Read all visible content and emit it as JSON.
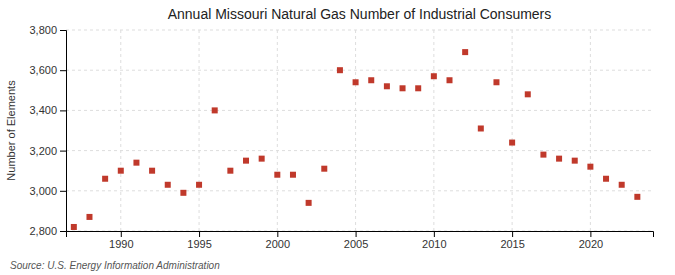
{
  "chart_data": {
    "type": "scatter",
    "title": "Annual Missouri Natural Gas Number of Industrial Consumers",
    "ylabel": "Number of Elements",
    "source": "Source: U.S. Energy Information Administration",
    "x": [
      1987,
      1988,
      1989,
      1990,
      1991,
      1992,
      1993,
      1994,
      1995,
      1996,
      1997,
      1998,
      1999,
      2000,
      2001,
      2002,
      2003,
      2004,
      2005,
      2006,
      2007,
      2008,
      2009,
      2010,
      2011,
      2012,
      2013,
      2014,
      2015,
      2016,
      2017,
      2018,
      2019,
      2020,
      2021,
      2022,
      2023
    ],
    "values": [
      2820,
      2870,
      3060,
      3100,
      3140,
      3100,
      3030,
      2990,
      3030,
      3400,
      3100,
      3150,
      3160,
      3080,
      3080,
      2940,
      3110,
      3600,
      3540,
      3550,
      3520,
      3510,
      3510,
      3570,
      3550,
      3690,
      3310,
      3540,
      3240,
      3480,
      3180,
      3160,
      3150,
      3120,
      3060,
      3030,
      2970
    ],
    "color": "#c0392b",
    "marker": "square",
    "xlim": [
      1986.5,
      2024
    ],
    "xticks": [
      1990,
      1995,
      2000,
      2005,
      2010,
      2015,
      2020
    ],
    "ylim": [
      2800,
      3800
    ],
    "yticks": [
      {
        "value": 2800,
        "label": "2,800"
      },
      {
        "value": 3000,
        "label": "3,000"
      },
      {
        "value": 3200,
        "label": "3,200"
      },
      {
        "value": 3400,
        "label": "3,400"
      },
      {
        "value": 3600,
        "label": "3,600"
      },
      {
        "value": 3800,
        "label": "3,800"
      }
    ],
    "grid": true
  }
}
